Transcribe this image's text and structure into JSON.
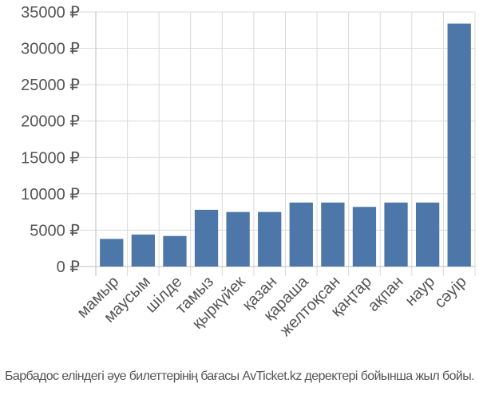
{
  "chart_data": {
    "type": "bar",
    "categories": [
      "мамыр",
      "маусым",
      "шілде",
      "тамыз",
      "қыркүйек",
      "қазан",
      "қараша",
      "желтоқсан",
      "қаңтар",
      "ақпан",
      "наур",
      "сәуір"
    ],
    "values": [
      3800,
      4400,
      4200,
      7800,
      7500,
      7500,
      8800,
      8800,
      8200,
      8800,
      8800,
      33400
    ],
    "ylim": [
      0,
      35000
    ],
    "yticks": [
      0,
      5000,
      10000,
      15000,
      20000,
      25000,
      30000,
      35000
    ],
    "ytick_labels": [
      "0 ₽",
      "5000 ₽",
      "10000 ₽",
      "15000 ₽",
      "20000 ₽",
      "25000 ₽",
      "30000 ₽",
      "35000 ₽"
    ],
    "grid": true,
    "bar_color": "#4d77a8"
  },
  "caption": "Барбадос еліндегі әуе билеттерінің бағасы AvTicket.kz деректері бойынша жыл бойы."
}
